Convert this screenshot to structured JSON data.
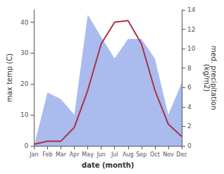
{
  "chart_data": {
    "type": "line",
    "xlabel": "date (month)",
    "ylabel": "max temp (C)",
    "y2label": "med. precipitation\n(kg/m2)",
    "categories": [
      "Jan",
      "Feb",
      "Mar",
      "Apr",
      "May",
      "Jun",
      "Jul",
      "Aug",
      "Sep",
      "Oct",
      "Nov",
      "Dec"
    ],
    "series": [
      {
        "type": "area",
        "axis": "y2",
        "color": "#aabbee",
        "values": [
          0.0,
          5.5,
          4.8,
          3.2,
          13.5,
          11.2,
          9.0,
          11.0,
          11.0,
          9.0,
          3.2,
          6.5
        ]
      },
      {
        "type": "line",
        "color": "#aa3344",
        "values": [
          0.5,
          1.5,
          1.5,
          6.0,
          18.0,
          33.0,
          40.0,
          40.5,
          33.0,
          18.0,
          7.0,
          3.0
        ]
      }
    ],
    "ylim": [
      0,
      44
    ],
    "yticks": [
      0,
      10,
      20,
      30,
      40
    ],
    "y2lim": [
      0,
      14
    ],
    "y2ticks": [
      0,
      2,
      4,
      6,
      8,
      10,
      12,
      14
    ],
    "grid": false
  }
}
